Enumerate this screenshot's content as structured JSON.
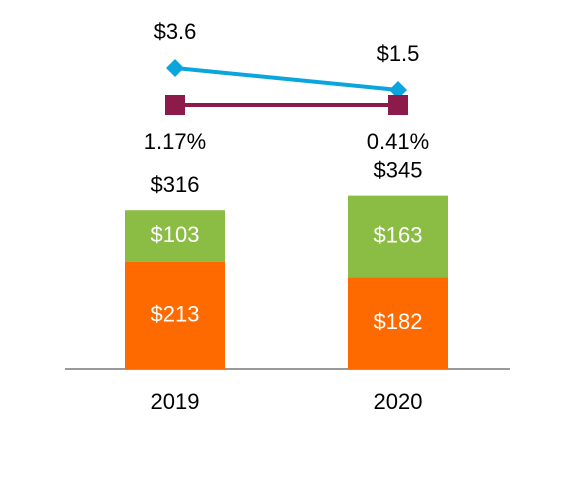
{
  "chart_data": {
    "type": "stacked-bar",
    "categories": [
      "2019",
      "2020"
    ],
    "ylim": [
      0,
      400
    ],
    "y2lim": [
      0,
      4
    ],
    "series": [
      {
        "type": "bar",
        "color": "#ff6a00",
        "values": [
          213,
          182
        ],
        "value_labels": [
          "$213",
          "$182"
        ]
      },
      {
        "type": "bar",
        "color": "#8bbd45",
        "values": [
          103,
          163
        ],
        "value_labels": [
          "$103",
          "$163"
        ]
      },
      {
        "type": "line",
        "axis": "y2",
        "marker": "diamond",
        "color": "#0ba5dd",
        "values": [
          3.6,
          1.5
        ],
        "value_labels": [
          "$3.6",
          "$1.5"
        ]
      },
      {
        "type": "marker-row",
        "marker": "square",
        "color": "#8c1a4b",
        "values": [
          1.17,
          0.41
        ],
        "value_labels": [
          "1.17%",
          "0.41%"
        ]
      }
    ],
    "totals": [
      316,
      345
    ],
    "total_labels": [
      "$316",
      "$345"
    ]
  }
}
